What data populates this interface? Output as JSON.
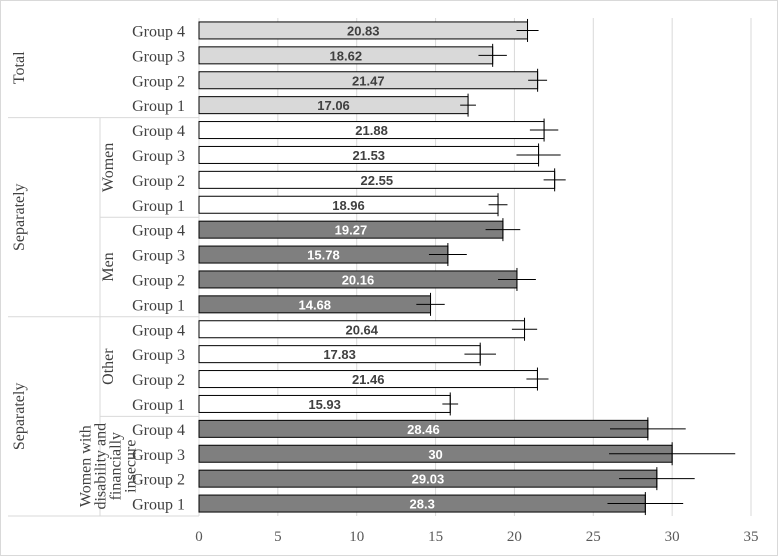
{
  "chart_data": {
    "type": "bar",
    "orientation": "horizontal",
    "xlim": [
      0,
      35
    ],
    "x_ticks": [
      "0",
      "5",
      "10",
      "15",
      "20",
      "25",
      "30",
      "35"
    ],
    "grid": true,
    "section_labels": [
      "Total",
      "Separately",
      "Separately"
    ],
    "subgroup_labels": [
      "Women",
      "Men",
      "Other",
      "Women with disability and financially insecure"
    ],
    "subgroup_label_lines": [
      [
        "Women"
      ],
      [
        "Men"
      ],
      [
        "Other"
      ],
      [
        "Women with",
        "disability and",
        "financially",
        "insecure"
      ]
    ],
    "bars": [
      {
        "label": "Group 4",
        "value": 20.83,
        "display": "20.83",
        "err": 0.7,
        "fill": "#d9d9d9",
        "text_color": "#404040"
      },
      {
        "label": "Group 3",
        "value": 18.62,
        "display": "18.62",
        "err": 0.9,
        "fill": "#d9d9d9",
        "text_color": "#404040"
      },
      {
        "label": "Group 2",
        "value": 21.47,
        "display": "21.47",
        "err": 0.6,
        "fill": "#d9d9d9",
        "text_color": "#404040"
      },
      {
        "label": "Group 1",
        "value": 17.06,
        "display": "17.06",
        "err": 0.5,
        "fill": "#d9d9d9",
        "text_color": "#404040"
      },
      {
        "label": "Group 4",
        "value": 21.88,
        "display": "21.88",
        "err": 0.9,
        "fill": "#ffffff",
        "text_color": "#404040"
      },
      {
        "label": "Group 3",
        "value": 21.53,
        "display": "21.53",
        "err": 1.4,
        "fill": "#ffffff",
        "text_color": "#404040"
      },
      {
        "label": "Group 2",
        "value": 22.55,
        "display": "22.55",
        "err": 0.7,
        "fill": "#ffffff",
        "text_color": "#404040"
      },
      {
        "label": "Group 1",
        "value": 18.96,
        "display": "18.96",
        "err": 0.6,
        "fill": "#ffffff",
        "text_color": "#404040"
      },
      {
        "label": "Group 4",
        "value": 19.27,
        "display": "19.27",
        "err": 1.1,
        "fill": "#7f7f7f",
        "text_color": "#ffffff"
      },
      {
        "label": "Group 3",
        "value": 15.78,
        "display": "15.78",
        "err": 1.2,
        "fill": "#7f7f7f",
        "text_color": "#ffffff"
      },
      {
        "label": "Group 2",
        "value": 20.16,
        "display": "20.16",
        "err": 1.2,
        "fill": "#7f7f7f",
        "text_color": "#ffffff"
      },
      {
        "label": "Group 1",
        "value": 14.68,
        "display": "14.68",
        "err": 0.9,
        "fill": "#7f7f7f",
        "text_color": "#ffffff"
      },
      {
        "label": "Group 4",
        "value": 20.64,
        "display": "20.64",
        "err": 0.8,
        "fill": "#ffffff",
        "text_color": "#404040"
      },
      {
        "label": "Group 3",
        "value": 17.83,
        "display": "17.83",
        "err": 1.0,
        "fill": "#ffffff",
        "text_color": "#404040"
      },
      {
        "label": "Group 2",
        "value": 21.46,
        "display": "21.46",
        "err": 0.7,
        "fill": "#ffffff",
        "text_color": "#404040"
      },
      {
        "label": "Group 1",
        "value": 15.93,
        "display": "15.93",
        "err": 0.5,
        "fill": "#ffffff",
        "text_color": "#404040"
      },
      {
        "label": "Group 4",
        "value": 28.46,
        "display": "28.46",
        "err": 2.4,
        "fill": "#7f7f7f",
        "text_color": "#ffffff"
      },
      {
        "label": "Group 3",
        "value": 30,
        "display": "30",
        "err": 4.0,
        "fill": "#7f7f7f",
        "text_color": "#ffffff"
      },
      {
        "label": "Group 2",
        "value": 29.03,
        "display": "29.03",
        "err": 2.4,
        "fill": "#7f7f7f",
        "text_color": "#ffffff"
      },
      {
        "label": "Group 1",
        "value": 28.3,
        "display": "28.3",
        "err": 2.4,
        "fill": "#7f7f7f",
        "text_color": "#ffffff"
      }
    ],
    "colors": {
      "bar_border": "#000000",
      "gridline": "#d9d9d9",
      "tick_text": "#595959",
      "category_text": "#404040"
    }
  }
}
